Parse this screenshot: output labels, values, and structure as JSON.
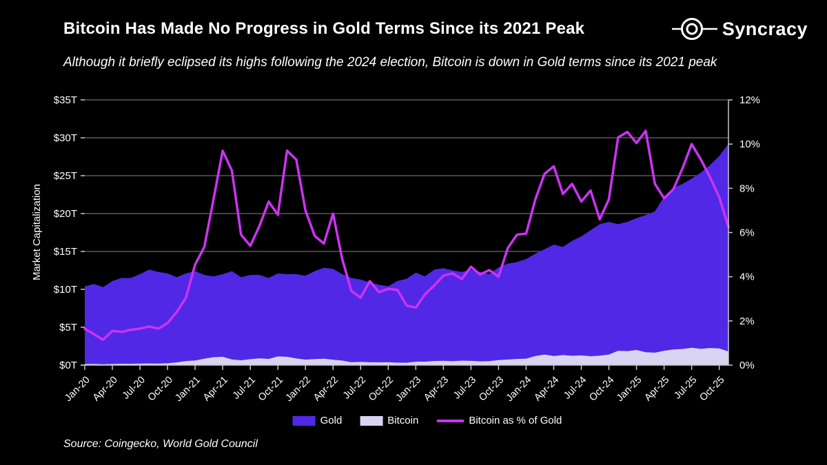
{
  "header": {
    "title": "Bitcoin Has Made No Progress in Gold Terms Since its 2021 Peak",
    "subtitle": "Although it briefly eclipsed its highs following the 2024 election, Bitcoin is down in Gold terms since its 2021 peak",
    "brand": "Syncracy"
  },
  "footer": {
    "source": "Source: Coingecko, World Gold Council"
  },
  "legend": {
    "items": [
      {
        "label": "Gold",
        "color": "#5128E6",
        "swatch": "area"
      },
      {
        "label": "Bitcoin",
        "color": "#D8D4F2",
        "swatch": "area"
      },
      {
        "label": "Bitcoin as % of Gold",
        "color": "#CC33F2",
        "swatch": "line"
      }
    ]
  },
  "chart_data": {
    "type": "area",
    "ylabel": "Market Capitalization",
    "y_left_ticks": [
      "$0T",
      "$5T",
      "$10T",
      "$15T",
      "$20T",
      "$25T",
      "$30T",
      "$35T"
    ],
    "y_left_lim": [
      0,
      35
    ],
    "y_right_ticks": [
      "0%",
      "2%",
      "4%",
      "6%",
      "8%",
      "10%",
      "12%"
    ],
    "y_right_lim": [
      0,
      12
    ],
    "x_tick_labels": [
      "Jan-20",
      "Apr-20",
      "Jul-20",
      "Oct-20",
      "Jan-21",
      "Apr-21",
      "Jul-21",
      "Oct-21",
      "Jan-22",
      "Apr-22",
      "Jul-22",
      "Oct-22",
      "Jan-23",
      "Apr-23",
      "Jul-23",
      "Oct-23",
      "Jan-24",
      "Apr-24",
      "Jul-24",
      "Oct-24",
      "Jan-25",
      "Apr-25",
      "Jul-25",
      "Oct-25"
    ],
    "months": [
      "Jan-20",
      "Feb-20",
      "Mar-20",
      "Apr-20",
      "May-20",
      "Jun-20",
      "Jul-20",
      "Aug-20",
      "Sep-20",
      "Oct-20",
      "Nov-20",
      "Dec-20",
      "Jan-21",
      "Feb-21",
      "Mar-21",
      "Apr-21",
      "May-21",
      "Jun-21",
      "Jul-21",
      "Aug-21",
      "Sep-21",
      "Oct-21",
      "Nov-21",
      "Dec-21",
      "Jan-22",
      "Feb-22",
      "Mar-22",
      "Apr-22",
      "May-22",
      "Jun-22",
      "Jul-22",
      "Aug-22",
      "Sep-22",
      "Oct-22",
      "Nov-22",
      "Dec-22",
      "Jan-23",
      "Feb-23",
      "Mar-23",
      "Apr-23",
      "May-23",
      "Jun-23",
      "Jul-23",
      "Aug-23",
      "Sep-23",
      "Oct-23",
      "Nov-23",
      "Dec-23",
      "Jan-24",
      "Feb-24",
      "Mar-24",
      "Apr-24",
      "May-24",
      "Jun-24",
      "Jul-24",
      "Aug-24",
      "Sep-24",
      "Oct-24",
      "Nov-24",
      "Dec-24",
      "Jan-25",
      "Feb-25",
      "Mar-25",
      "Apr-25",
      "May-25",
      "Jun-25",
      "Jul-25",
      "Aug-25",
      "Sep-25",
      "Oct-25",
      "Nov-25"
    ],
    "series": [
      {
        "name": "Gold",
        "unit": "$T",
        "stack_order": 2,
        "values": [
          10.25,
          10.54,
          10.18,
          10.94,
          11.32,
          11.33,
          11.8,
          12.38,
          12.1,
          11.85,
          11.24,
          11.56,
          11.78,
          11.05,
          10.65,
          10.9,
          11.65,
          10.95,
          11.12,
          11.0,
          10.68,
          10.95,
          10.9,
          11.12,
          11.07,
          11.6,
          12.0,
          11.98,
          11.4,
          11.12,
          10.86,
          10.52,
          10.23,
          10.01,
          10.77,
          11.08,
          11.75,
          11.25,
          12.05,
          12.23,
          11.97,
          11.71,
          12.03,
          11.8,
          11.47,
          12.23,
          12.66,
          12.78,
          13.15,
          13.5,
          13.9,
          14.7,
          14.27,
          15.16,
          15.72,
          16.63,
          17.35,
          17.5,
          16.7,
          17.05,
          17.4,
          18.1,
          18.65,
          20.3,
          21.33,
          21.77,
          22.3,
          23.25,
          24.14,
          25.4,
          27.4
        ]
      },
      {
        "name": "Bitcoin",
        "unit": "$T",
        "stack_order": 1,
        "values": [
          0.15,
          0.16,
          0.12,
          0.16,
          0.18,
          0.17,
          0.2,
          0.22,
          0.2,
          0.25,
          0.36,
          0.54,
          0.62,
          0.85,
          1.05,
          1.1,
          0.75,
          0.65,
          0.78,
          0.9,
          0.82,
          1.15,
          1.1,
          0.88,
          0.73,
          0.8,
          0.85,
          0.72,
          0.6,
          0.38,
          0.44,
          0.38,
          0.37,
          0.39,
          0.33,
          0.32,
          0.45,
          0.45,
          0.55,
          0.57,
          0.53,
          0.59,
          0.57,
          0.5,
          0.53,
          0.67,
          0.74,
          0.82,
          0.85,
          1.2,
          1.4,
          1.2,
          1.33,
          1.24,
          1.28,
          1.17,
          1.25,
          1.4,
          1.9,
          1.85,
          2.0,
          1.7,
          1.65,
          1.9,
          2.07,
          2.13,
          2.3,
          2.15,
          2.26,
          2.2,
          1.8
        ]
      },
      {
        "name": "Bitcoin as % of Gold",
        "unit": "%",
        "axis": "right",
        "values": [
          1.65,
          1.4,
          1.15,
          1.55,
          1.5,
          1.6,
          1.65,
          1.75,
          1.65,
          1.9,
          2.4,
          3.05,
          4.55,
          5.35,
          7.5,
          9.7,
          8.8,
          5.9,
          5.4,
          6.3,
          7.4,
          6.8,
          9.7,
          9.3,
          7.0,
          5.85,
          5.5,
          6.85,
          4.8,
          3.35,
          3.05,
          3.8,
          3.3,
          3.45,
          3.4,
          2.7,
          2.6,
          3.2,
          3.6,
          4.05,
          4.15,
          3.9,
          4.45,
          4.1,
          4.3,
          4.0,
          5.3,
          5.9,
          5.95,
          7.5,
          8.65,
          9.0,
          7.75,
          8.2,
          7.4,
          7.9,
          6.6,
          7.5,
          10.3,
          10.55,
          10.05,
          10.6,
          8.2,
          7.55,
          7.95,
          8.9,
          10.0,
          9.3,
          8.5,
          7.6,
          6.25
        ]
      }
    ],
    "colors": {
      "gold": "#5128E6",
      "bitcoin": "#D8D4F2",
      "ratio_line": "#CC33F2",
      "grid": "#848484",
      "axis": "#C8C8C8",
      "text": "#FFFFFF",
      "background": "#000000"
    },
    "grid": true,
    "legend_position": "bottom"
  }
}
